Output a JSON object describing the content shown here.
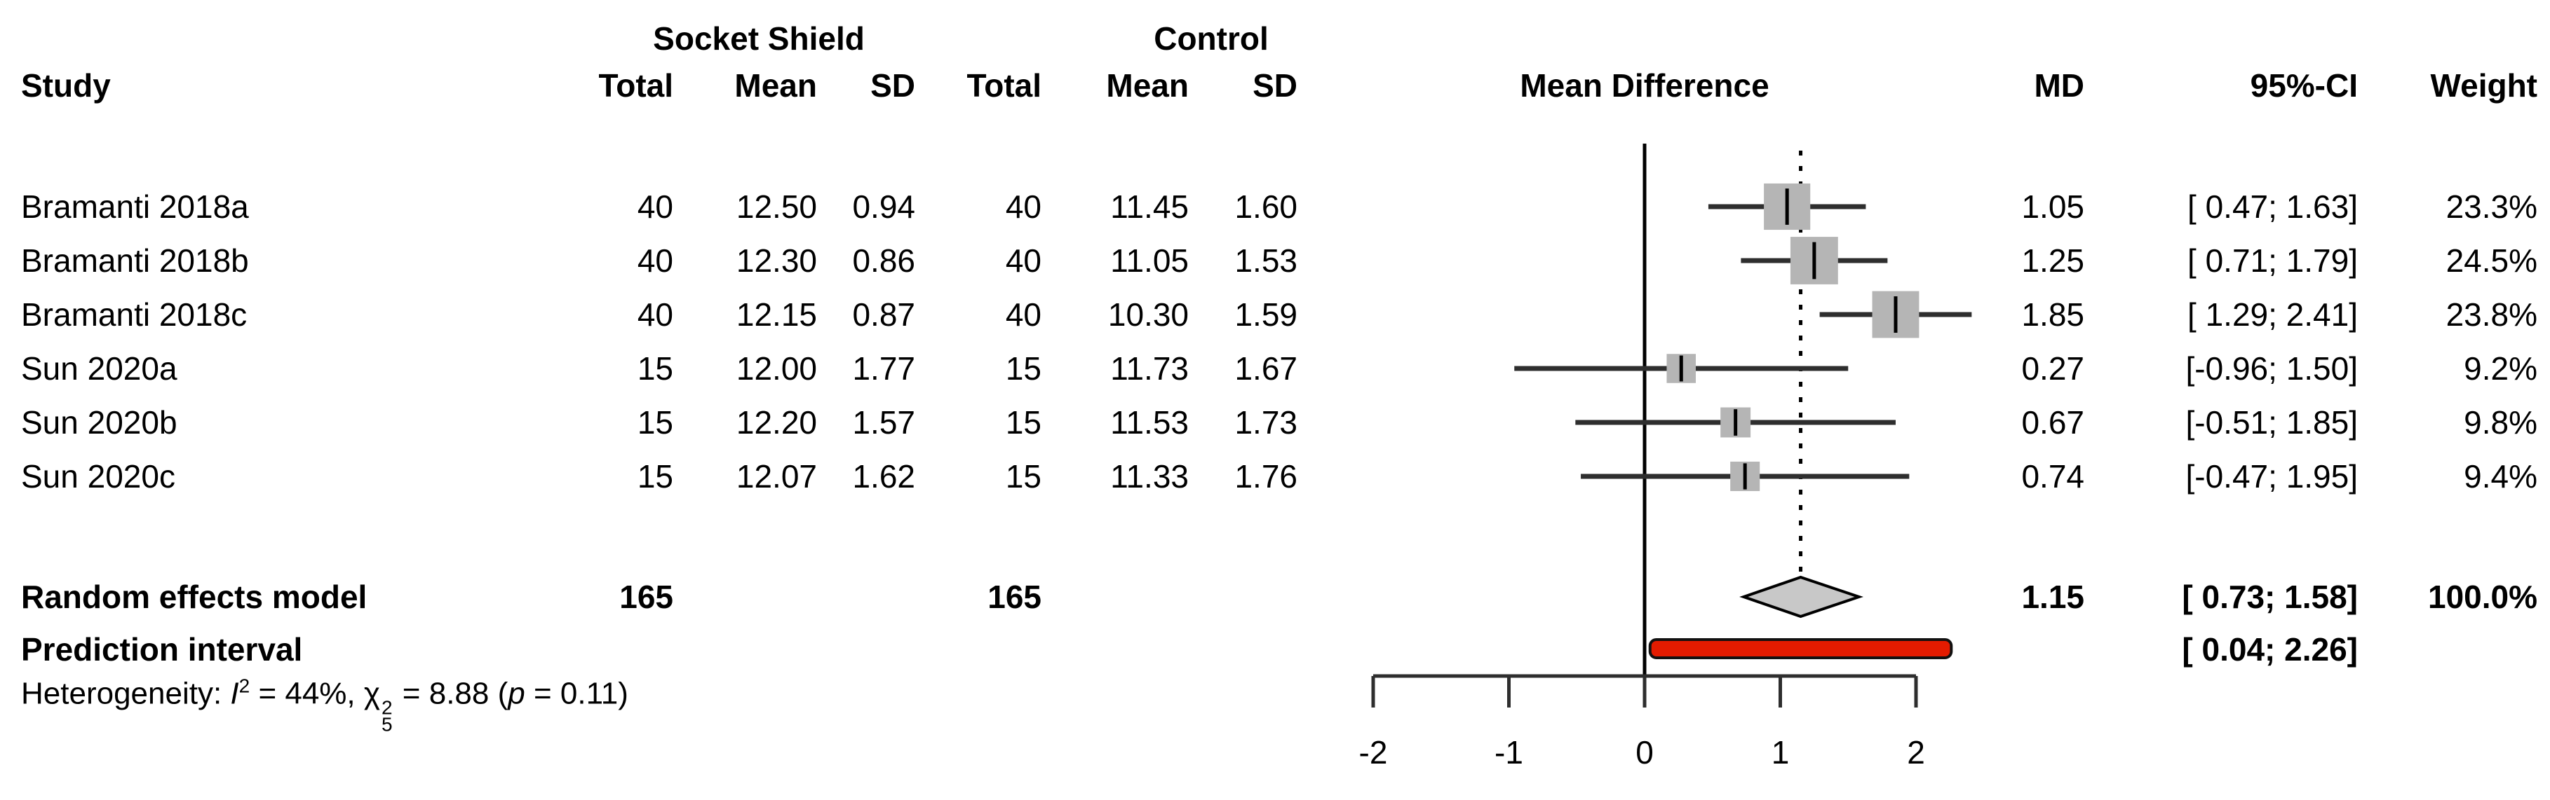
{
  "figure": {
    "columns": {
      "study": "Study",
      "group1": "Socket Shield",
      "group2": "Control",
      "total": "Total",
      "mean": "Mean",
      "sd": "SD",
      "plot": "Mean Difference",
      "md": "MD",
      "ci": "95%-CI",
      "weight": "Weight"
    }
  },
  "chart_data": {
    "type": "forest",
    "effect_measure": "Mean Difference",
    "axis_ticks": [
      -2,
      -1,
      0,
      1,
      2
    ],
    "xlim": [
      -2,
      2
    ],
    "zero_line": 0,
    "pooled_line": 1.15,
    "studies": [
      {
        "name": "Bramanti 2018a",
        "ss_total": "40",
        "ss_mean": "12.50",
        "ss_sd": "0.94",
        "c_total": "40",
        "c_mean": "11.45",
        "c_sd": "1.60",
        "md": 1.05,
        "lower": 0.47,
        "upper": 1.63,
        "md_str": "1.05",
        "ci_str": "[ 0.47; 1.63]",
        "weight": 23.3,
        "weight_str": "23.3%"
      },
      {
        "name": "Bramanti 2018b",
        "ss_total": "40",
        "ss_mean": "12.30",
        "ss_sd": "0.86",
        "c_total": "40",
        "c_mean": "11.05",
        "c_sd": "1.53",
        "md": 1.25,
        "lower": 0.71,
        "upper": 1.79,
        "md_str": "1.25",
        "ci_str": "[ 0.71; 1.79]",
        "weight": 24.5,
        "weight_str": "24.5%"
      },
      {
        "name": "Bramanti 2018c",
        "ss_total": "40",
        "ss_mean": "12.15",
        "ss_sd": "0.87",
        "c_total": "40",
        "c_mean": "10.30",
        "c_sd": "1.59",
        "md": 1.85,
        "lower": 1.29,
        "upper": 2.41,
        "md_str": "1.85",
        "ci_str": "[ 1.29; 2.41]",
        "weight": 23.8,
        "weight_str": "23.8%"
      },
      {
        "name": "Sun 2020a",
        "ss_total": "15",
        "ss_mean": "12.00",
        "ss_sd": "1.77",
        "c_total": "15",
        "c_mean": "11.73",
        "c_sd": "1.67",
        "md": 0.27,
        "lower": -0.96,
        "upper": 1.5,
        "md_str": "0.27",
        "ci_str": "[-0.96; 1.50]",
        "weight": 9.2,
        "weight_str": "9.2%"
      },
      {
        "name": "Sun 2020b",
        "ss_total": "15",
        "ss_mean": "12.20",
        "ss_sd": "1.57",
        "c_total": "15",
        "c_mean": "11.53",
        "c_sd": "1.73",
        "md": 0.67,
        "lower": -0.51,
        "upper": 1.85,
        "md_str": "0.67",
        "ci_str": "[-0.51; 1.85]",
        "weight": 9.8,
        "weight_str": "9.8%"
      },
      {
        "name": "Sun 2020c",
        "ss_total": "15",
        "ss_mean": "12.07",
        "ss_sd": "1.62",
        "c_total": "15",
        "c_mean": "11.33",
        "c_sd": "1.76",
        "md": 0.74,
        "lower": -0.47,
        "upper": 1.95,
        "md_str": "0.74",
        "ci_str": "[-0.47; 1.95]",
        "weight": 9.4,
        "weight_str": "9.4%"
      }
    ],
    "summary": {
      "label": "Random effects model",
      "ss_total": "165",
      "c_total": "165",
      "md": 1.15,
      "lower": 0.73,
      "upper": 1.58,
      "md_str": "1.15",
      "ci_str": "[ 0.73; 1.58]",
      "weight_str": "100.0%"
    },
    "prediction": {
      "label": "Prediction interval",
      "lower": 0.04,
      "upper": 2.26,
      "ci_str": "[ 0.04; 2.26]"
    },
    "heterogeneity": {
      "prefix": "Heterogeneity: ",
      "i_label": "I",
      "i_sup": "2",
      "i_eq": " = 44%, ",
      "chi_label": "χ",
      "chi_sup": "2",
      "chi_sub": "5",
      "chi_eq": " = 8.88 (",
      "p_label": "p",
      "p_eq": " = 0.11)"
    },
    "colors": {
      "effect_square": "#b5b5b5",
      "marker_tick": "#000000",
      "ci_line": "#2e2e2e",
      "zero_line": "#000000",
      "diamond_fill": "#c8c8c8",
      "diamond_stroke": "#000000",
      "prediction_bar": "#e31b00",
      "axis": "#2e2e2e"
    }
  }
}
